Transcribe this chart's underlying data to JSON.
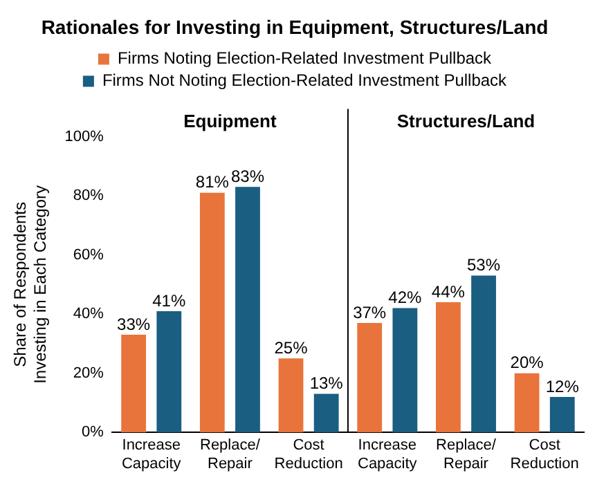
{
  "chart_data": {
    "type": "bar",
    "title": "Rationales for Investing in Equipment, Structures/Land",
    "categories": [
      "Increase Capacity",
      "Replace/Repair",
      "Cost Reduction",
      "Increase Capacity",
      "Replace/Repair",
      "Cost Reduction"
    ],
    "series": [
      {
        "name": "Firms Noting Election-Related Investment Pullback",
        "color": "#e8743b",
        "values": [
          33,
          81,
          25,
          37,
          44,
          20
        ],
        "value_labels": [
          "33%",
          "81%",
          "25%",
          "37%",
          "44%",
          "20%"
        ]
      },
      {
        "name": "Firms Not Noting Election-Related Investment Pullback",
        "color": "#1a5e82",
        "values": [
          41,
          83,
          13,
          42,
          53,
          12
        ],
        "value_labels": [
          "41%",
          "83%",
          "13%",
          "42%",
          "53%",
          "12%"
        ]
      }
    ],
    "ylabel": "Share of Respondents Investing in Each Category",
    "ylim": [
      0,
      100
    ],
    "yticks": [
      {
        "value": 0,
        "label": "0%"
      },
      {
        "value": 20,
        "label": "20%"
      },
      {
        "value": 40,
        "label": "40%"
      },
      {
        "value": 60,
        "label": "60%"
      },
      {
        "value": 80,
        "label": "80%"
      },
      {
        "value": 100,
        "label": "100%"
      }
    ],
    "annotations": [
      "Equipment",
      "Structures/Land"
    ],
    "grid": false,
    "legend": "top"
  }
}
